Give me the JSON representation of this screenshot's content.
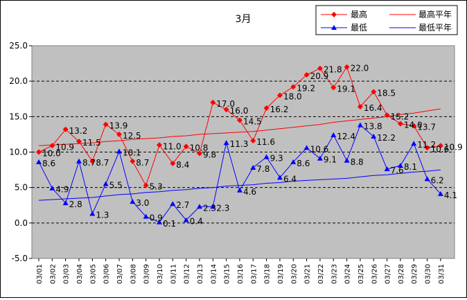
{
  "chart_data": {
    "type": "line",
    "title": "3月",
    "xlabel": "",
    "ylabel": "",
    "ylim": [
      -5,
      25
    ],
    "yticks": [
      "25.0",
      "20.0",
      "15.0",
      "10.0",
      "5.0",
      "0.0",
      "-5.0"
    ],
    "grid": "horizontal dashed",
    "legend_position": "top-right",
    "categories": [
      "03/01",
      "03/02",
      "03/03",
      "03/04",
      "03/05",
      "03/06",
      "03/07",
      "03/08",
      "03/09",
      "03/10",
      "03/11",
      "03/12",
      "03/13",
      "03/14",
      "03/15",
      "03/16",
      "03/17",
      "03/18",
      "03/19",
      "03/20",
      "03/21",
      "03/22",
      "03/23",
      "03/24",
      "03/25",
      "03/26",
      "03/27",
      "03/28",
      "03/29",
      "03/30",
      "03/31"
    ],
    "series": [
      {
        "name": "最高",
        "color": "#ff0000",
        "marker": "diamond",
        "values": [
          10.0,
          10.9,
          13.2,
          11.5,
          8.7,
          13.9,
          12.5,
          8.7,
          5.3,
          11.0,
          8.4,
          10.8,
          9.8,
          17.0,
          16.0,
          14.5,
          11.6,
          16.2,
          18.0,
          19.2,
          20.9,
          21.8,
          19.1,
          22.0,
          16.4,
          18.5,
          15.2,
          14.0,
          13.7,
          10.6,
          10.9
        ],
        "labels": [
          "10.0",
          "10.9",
          "13.2",
          "11.5",
          "8.7",
          "13.9",
          "12.5",
          "8.7",
          "5.3",
          "11.0",
          "8.4",
          "10.8",
          "9.8",
          "17.0",
          "16.0",
          "14.5",
          "11.6",
          "16.2",
          "18.0",
          "19.2",
          "20.9",
          "21.8",
          "19.1",
          "22.0",
          "16.4",
          "18.5",
          "15.2",
          "14.0",
          "13.7",
          "10.6",
          "10.9"
        ]
      },
      {
        "name": "最低",
        "color": "#0000ff",
        "marker": "triangle",
        "values": [
          8.6,
          4.9,
          2.8,
          8.7,
          1.3,
          5.5,
          10.1,
          3.0,
          0.9,
          0.1,
          2.7,
          0.4,
          2.3,
          2.3,
          11.3,
          4.6,
          7.8,
          9.3,
          6.4,
          8.6,
          10.6,
          9.1,
          12.4,
          8.8,
          13.8,
          12.2,
          7.6,
          8.1,
          11.2,
          6.2,
          4.1
        ],
        "labels": [
          "8.6",
          "4.9",
          "2.8",
          "8.7",
          "1.3",
          "5.5",
          "10.1",
          "3.0",
          "0.9",
          "0.1",
          "2.7",
          "0.4",
          "2.3",
          "2.3",
          "11.3",
          "4.6",
          "7.8",
          "9.3",
          "6.4",
          "8.6",
          "10.6",
          "9.1",
          "12.4",
          "8.8",
          "13.8",
          "12.2",
          "7.6",
          "8.1",
          "11.2",
          "6.2",
          "4.1"
        ]
      },
      {
        "name": "最高平年",
        "color": "#ff0000",
        "marker": "none",
        "values": [
          10.9,
          11.0,
          11.1,
          11.2,
          11.3,
          11.5,
          11.6,
          11.8,
          11.9,
          12.0,
          12.2,
          12.3,
          12.5,
          12.6,
          12.7,
          12.8,
          12.9,
          13.1,
          13.3,
          13.5,
          13.7,
          13.9,
          14.2,
          14.4,
          14.6,
          14.8,
          15.0,
          15.3,
          15.5,
          15.8,
          16.1
        ]
      },
      {
        "name": "最低平年",
        "color": "#0000ff",
        "marker": "none",
        "values": [
          3.2,
          3.3,
          3.4,
          3.5,
          3.6,
          3.8,
          4.0,
          4.1,
          4.3,
          4.4,
          4.6,
          4.7,
          4.9,
          5.0,
          5.2,
          5.3,
          5.4,
          5.6,
          5.7,
          5.9,
          6.0,
          6.1,
          6.2,
          6.3,
          6.5,
          6.7,
          6.8,
          7.0,
          7.2,
          7.3,
          7.5
        ]
      }
    ]
  }
}
